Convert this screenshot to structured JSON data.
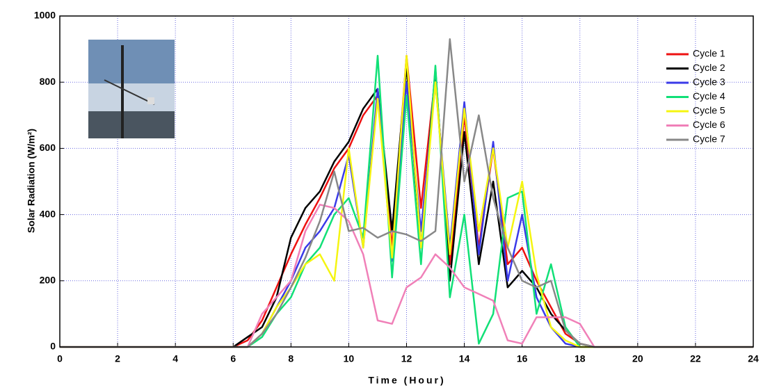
{
  "chart_data": {
    "type": "line",
    "x_label": "Time (Hour)",
    "y_label": "Solar Radiation (W/m²)",
    "x": [
      0,
      6,
      6.5,
      7,
      7.5,
      8,
      8.5,
      9,
      9.5,
      10,
      10.5,
      11,
      11.5,
      12,
      12.5,
      13,
      13.5,
      14,
      14.5,
      15,
      15.5,
      16,
      16.5,
      17,
      17.5,
      18,
      18.5,
      19,
      24
    ],
    "series": [
      {
        "name": "Cycle 1",
        "color": "#ee1111",
        "values": [
          0,
          0,
          20,
          80,
          180,
          280,
          370,
          450,
          540,
          600,
          700,
          760,
          300,
          880,
          420,
          820,
          250,
          700,
          300,
          600,
          250,
          300,
          200,
          120,
          40,
          10,
          0,
          0,
          0
        ]
      },
      {
        "name": "Cycle 2",
        "color": "#000000",
        "values": [
          0,
          0,
          30,
          60,
          150,
          330,
          420,
          470,
          560,
          620,
          720,
          780,
          350,
          850,
          300,
          840,
          200,
          650,
          250,
          500,
          180,
          230,
          180,
          100,
          50,
          10,
          0,
          0,
          0
        ]
      },
      {
        "name": "Cycle 3",
        "color": "#3a3ae8",
        "values": [
          0,
          0,
          0,
          40,
          120,
          200,
          300,
          350,
          420,
          580,
          300,
          780,
          260,
          800,
          350,
          800,
          300,
          740,
          280,
          620,
          200,
          400,
          150,
          60,
          10,
          0,
          0,
          0,
          0
        ]
      },
      {
        "name": "Cycle 4",
        "color": "#11e077",
        "values": [
          0,
          0,
          0,
          30,
          100,
          150,
          250,
          300,
          400,
          450,
          330,
          880,
          210,
          760,
          250,
          850,
          150,
          400,
          10,
          100,
          450,
          470,
          100,
          250,
          60,
          0,
          0,
          0,
          0
        ]
      },
      {
        "name": "Cycle 5",
        "color": "#f5f511",
        "values": [
          0,
          0,
          0,
          40,
          120,
          180,
          250,
          280,
          200,
          600,
          300,
          750,
          270,
          880,
          300,
          800,
          280,
          720,
          350,
          600,
          300,
          500,
          220,
          60,
          20,
          0,
          0,
          0,
          0
        ]
      },
      {
        "name": "Cycle 6",
        "color": "#f080b8",
        "values": [
          0,
          0,
          0,
          100,
          150,
          200,
          350,
          430,
          420,
          380,
          280,
          80,
          70,
          180,
          210,
          280,
          240,
          180,
          160,
          140,
          20,
          10,
          90,
          90,
          90,
          70,
          0,
          0,
          0
        ]
      },
      {
        "name": "Cycle 7",
        "color": "#888888",
        "values": [
          0,
          0,
          0,
          40,
          100,
          180,
          270,
          380,
          530,
          350,
          360,
          330,
          350,
          340,
          320,
          350,
          930,
          500,
          700,
          450,
          300,
          200,
          180,
          200,
          50,
          10,
          0,
          0,
          0
        ]
      }
    ],
    "xlim": [
      0,
      24
    ],
    "xticks": [
      0,
      2,
      4,
      6,
      8,
      10,
      12,
      14,
      16,
      18,
      20,
      22,
      24
    ],
    "ylim": [
      0,
      1000
    ],
    "yticks": [
      0,
      200,
      400,
      600,
      800,
      1000
    ],
    "grid": true,
    "legend": "upper-right"
  }
}
